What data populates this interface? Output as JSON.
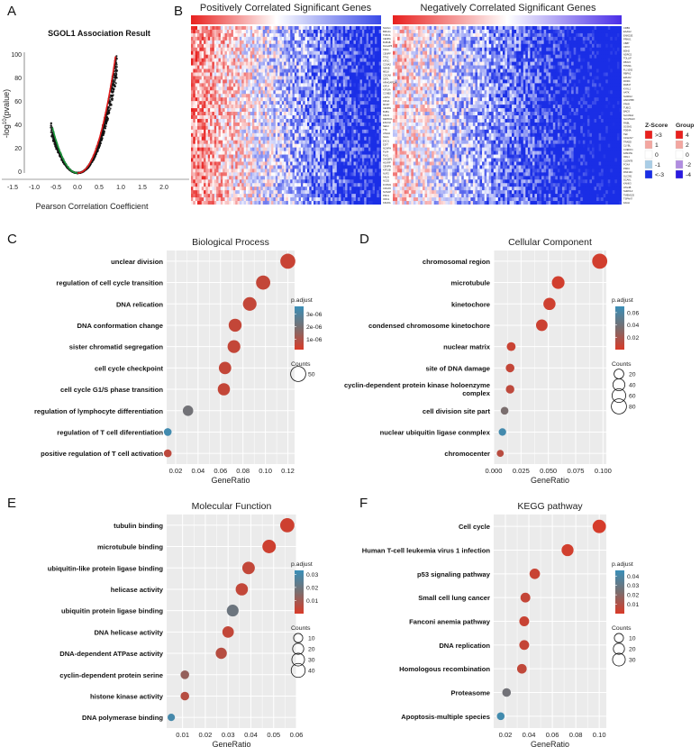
{
  "colors": {
    "padj_high": "#3a8fb8",
    "padj_mid": "#7a6e6e",
    "padj_low": "#d93a28",
    "panel_bg": "#ebebeb",
    "heat_red": "#e8201e",
    "heat_blue": "#1a2ee6",
    "volcano_pos": "#e01b1b",
    "volcano_neg": "#1a9a3a"
  },
  "panel_labels": {
    "a": "A",
    "b": "B",
    "c": "C",
    "d": "D",
    "e": "E",
    "f": "F"
  },
  "volcano": {
    "title": "SGOL1 Association Result",
    "xlabel": "Pearson  Correlation Coefficient",
    "ylabel_base": "-log",
    "ylabel_sup": "10",
    "ylabel_rest": "(pvalue)",
    "xticks": [
      "-1.5",
      "-1.0",
      "-0.5",
      "0.0",
      "0.5",
      "1.0",
      "1.5",
      "2.0"
    ],
    "yticks": [
      "0",
      "20",
      "40",
      "60",
      "80",
      "100"
    ]
  },
  "heatmap": {
    "pos_title": "Positively Correlated Significant Genes",
    "neg_title": "Negatively Correlated Significant Genes",
    "pos_genes": [
      "SGOL1",
      "BRCA1",
      "TOP2A",
      "CENPA",
      "BUB1B",
      "DLGAP5",
      "KIF11",
      "CENPF",
      "TPX2",
      "KIF2C",
      "CCNA2",
      "NMAB",
      "MELK",
      "CDCA8",
      "DEPL",
      "ARHGAP11A",
      "KIF14",
      "KIF18A",
      "CCNB2",
      "ASPM",
      "KIF4A",
      "MKI67",
      "CENPE",
      "BUB1",
      "KIF23",
      "DEPDC1",
      "ESCO2",
      "NEK2",
      "TTK",
      "ATAD2",
      "SKA1",
      "EXO1",
      "E2F7",
      "NCAPH",
      "PLK4",
      "PLK1",
      "SHCBP1",
      "HJURP",
      "CENPN",
      "KIF15B",
      "NUF2",
      "ANLN",
      "NCD2",
      "FOXM1",
      "CDCA5",
      "NUSAP",
      "PRC1",
      "ORC1",
      "KIF20A"
    ],
    "neg_genes": [
      "CRB3",
      "EAAG2",
      "ENKD2E",
      "PRKK1",
      "CB87",
      "CRY2",
      "BDH2",
      "NDRG2",
      "TOLLIP",
      "FBXL5",
      "TPM3A",
      "FLJ1092",
      "RBFA2",
      "EPHX2",
      "RORC",
      "RAB17",
      "KYAL1",
      "AATK",
      "SH3D12",
      "HSD17B8",
      "PPAR",
      "TUBC1",
      "BAD3",
      "SLC39A4",
      "SLC25A23",
      "RNBL",
      "SGSM1",
      "PDE4A",
      "TEF",
      "C19orf17",
      "TRADD",
      "CLYBL",
      "CUEDC1",
      "FAM47E",
      "ORL1",
      "CLDN7B",
      "FOXA",
      "PDKC",
      "RNF13C",
      "SLC391",
      "SCAKL",
      "KANK3",
      "ATG4B",
      "SHROL3",
      "TMEM125",
      "TSPAN7",
      "FAAH"
    ],
    "zscore_title": "Z-Score",
    "zscore_labels": [
      ">3",
      "1",
      "0",
      "-1",
      "<-3"
    ],
    "group_title": "Group",
    "group_labels": [
      "4",
      "2",
      "0",
      "-2",
      "-4"
    ],
    "zscore_colors": [
      "#e8201e",
      "#f3a6a0",
      "#ffffff",
      "#a9cde6",
      "#1a2ee6"
    ],
    "group_colors": [
      "#e8201e",
      "#f3a6a0",
      "#ffffff",
      "#b08ce0",
      "#2a1ae0"
    ]
  },
  "chart_data": [
    {
      "type": "scatter",
      "panel": "C",
      "title": "Biological Process",
      "xlabel": "GeneRatio",
      "xlim": [
        0.012,
        0.126
      ],
      "xticks": [
        0.02,
        0.04,
        0.06,
        0.08,
        0.1,
        0.12
      ],
      "xtick_labels": [
        "0.02",
        "0.04",
        "0.06",
        "0.08",
        "0.10",
        "0.12"
      ],
      "categories": [
        "unclear division",
        "regulation of cell cycle transition",
        "DNA relication",
        "DNA conformation change",
        "sister chromatid segregation",
        "cell cycle checkpoint",
        "cell cycle G1/S phase transition",
        "regulation of lymphocyte differentiation",
        "regulation of T cell diferentiation",
        "positive regulation of T cell activation"
      ],
      "x": [
        0.12,
        0.098,
        0.086,
        0.073,
        0.072,
        0.064,
        0.063,
        0.031,
        0.013,
        0.013
      ],
      "counts": [
        49,
        42,
        37,
        32,
        31,
        28,
        27,
        16,
        5,
        5
      ],
      "padj": [
        5e-07,
        6e-07,
        6e-07,
        6e-07,
        6e-07,
        6e-07,
        6e-07,
        2.1e-06,
        3.4e-06,
        7e-07
      ],
      "legend": {
        "padj_title": "p.adjust",
        "padj_range": [
          2e-07,
          3.6e-06
        ],
        "padj_ticks": [
          3e-06,
          2e-06,
          1e-06
        ],
        "padj_tick_labels": [
          "3e-06",
          "2e-06",
          "1e-06"
        ],
        "counts_title": "Counts",
        "counts_values": [
          50
        ],
        "counts_labels": [
          "50"
        ]
      }
    },
    {
      "type": "scatter",
      "panel": "D",
      "title": "Cellular Component",
      "xlabel": "GeneRatio",
      "xlim": [
        0.0,
        0.103
      ],
      "xticks": [
        0.0,
        0.025,
        0.05,
        0.075,
        0.1
      ],
      "xtick_labels": [
        "0.000",
        "0.025",
        "0.050",
        "0.075",
        "0.100"
      ],
      "categories": [
        "chromosomal region",
        "microtubule",
        "kinetochore",
        "condensed chromosome kinetochore",
        "nuclear matrix",
        "site of DNA damage",
        "cyclin-dependent protein kinase holoenzyme complex",
        "cell division site part",
        "nuclear ubiquitin ligase conmplex",
        "chromocenter"
      ],
      "x": [
        0.097,
        0.059,
        0.051,
        0.044,
        0.016,
        0.015,
        0.015,
        0.01,
        0.008,
        0.006
      ],
      "counts": [
        80,
        48,
        42,
        36,
        14,
        13,
        12,
        8,
        7,
        5
      ],
      "padj": [
        0.003,
        0.003,
        0.004,
        0.005,
        0.006,
        0.008,
        0.01,
        0.035,
        0.065,
        0.012
      ],
      "legend": {
        "padj_title": "p.adjust",
        "padj_range": [
          0.0,
          0.07
        ],
        "padj_ticks": [
          0.06,
          0.04,
          0.02
        ],
        "padj_tick_labels": [
          "0.06",
          "0.04",
          "0.02"
        ],
        "counts_title": "Counts",
        "counts_values": [
          20,
          40,
          60,
          80
        ],
        "counts_labels": [
          "20",
          "40",
          "60",
          "80"
        ]
      }
    },
    {
      "type": "scatter",
      "panel": "E",
      "title": "Molecular Function",
      "xlabel": "GeneRatio",
      "xlim": [
        0.003,
        0.06
      ],
      "xticks": [
        0.01,
        0.02,
        0.03,
        0.04,
        0.05,
        0.06
      ],
      "xtick_labels": [
        "0.01",
        "0.02",
        "0.03",
        "0.04",
        "0.05",
        "0.06"
      ],
      "categories": [
        "tubulin binding",
        "microtubule binding",
        "ubiquitin-like protein ligase binding",
        "helicase activity",
        "ubiquitin protein ligase binding",
        "DNA helicase activity",
        "DNA-dependent ATPase activity",
        "cyclin-dependent protein serine",
        "histone kinase activity",
        "DNA polymerase binding"
      ],
      "x": [
        0.056,
        0.048,
        0.039,
        0.036,
        0.032,
        0.03,
        0.027,
        0.011,
        0.011,
        0.005
      ],
      "counts": [
        42,
        36,
        29,
        27,
        24,
        22,
        20,
        8,
        8,
        4
      ],
      "padj": [
        0.002,
        0.002,
        0.004,
        0.004,
        0.02,
        0.004,
        0.006,
        0.012,
        0.006,
        0.03
      ],
      "legend": {
        "padj_title": "p.adjust",
        "padj_range": [
          0.0,
          0.033
        ],
        "padj_ticks": [
          0.03,
          0.02,
          0.01
        ],
        "padj_tick_labels": [
          "0.03",
          "0.02",
          "0.01"
        ],
        "counts_title": "Counts",
        "counts_values": [
          10,
          20,
          30,
          40
        ],
        "counts_labels": [
          "10",
          "20",
          "30",
          "40"
        ]
      }
    },
    {
      "type": "scatter",
      "panel": "F",
      "title": "KEGG pathway",
      "xlabel": "GeneRatio",
      "xlim": [
        0.01,
        0.106
      ],
      "xticks": [
        0.02,
        0.04,
        0.06,
        0.08,
        0.1
      ],
      "xtick_labels": [
        "0.02",
        "0.04",
        "0.06",
        "0.08",
        "0.10"
      ],
      "categories": [
        "Cell cycle",
        "Human T-cell leukemia virus 1 infection",
        "p53 signaling pathway",
        "Small cell lung cancer",
        "Fanconi anemia pathway",
        "DNA replication",
        "Homologous recombination",
        "Proteasome",
        "Apoptosis-multiple species"
      ],
      "x": [
        0.1,
        0.073,
        0.045,
        0.037,
        0.036,
        0.036,
        0.034,
        0.021,
        0.016
      ],
      "counts": [
        35,
        25,
        16,
        13,
        13,
        13,
        12,
        8,
        5
      ],
      "padj": [
        0.001,
        0.002,
        0.004,
        0.005,
        0.004,
        0.005,
        0.006,
        0.026,
        0.043
      ],
      "legend": {
        "padj_title": "p.adjust",
        "padj_range": [
          0.0,
          0.046
        ],
        "padj_ticks": [
          0.04,
          0.03,
          0.02,
          0.01
        ],
        "padj_tick_labels": [
          "0.04",
          "0.03",
          "0.02",
          "0.01"
        ],
        "counts_title": "Counts",
        "counts_values": [
          10,
          20,
          30
        ],
        "counts_labels": [
          "10",
          "20",
          "30"
        ]
      }
    }
  ]
}
